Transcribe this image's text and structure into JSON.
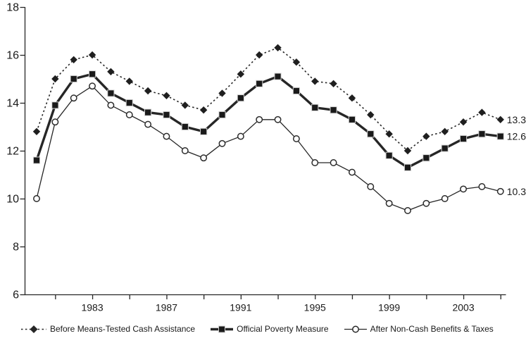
{
  "chart_data": {
    "type": "line",
    "title": "",
    "xlabel": "",
    "ylabel": "",
    "grid": false,
    "legend_position": "bottom",
    "ylim": [
      6,
      18
    ],
    "y_ticks": [
      6,
      8,
      10,
      12,
      14,
      16,
      18
    ],
    "x_minor_ticks": [
      1981,
      1983,
      1985,
      1987,
      1989,
      1991,
      1993,
      1995,
      1997,
      1999,
      2001,
      2003,
      2005
    ],
    "x_tick_labels": [
      1983,
      1987,
      1991,
      1995,
      1999,
      2003
    ],
    "x": [
      1980,
      1981,
      1982,
      1983,
      1984,
      1985,
      1986,
      1987,
      1988,
      1989,
      1990,
      1991,
      1992,
      1993,
      1994,
      1995,
      1996,
      1997,
      1998,
      1999,
      2000,
      2001,
      2002,
      2003,
      2004,
      2005
    ],
    "series": [
      {
        "name": "Before Means-Tested Cash Assistance",
        "marker": "diamond-filled",
        "line": "dotted",
        "end_label": "13.3",
        "values": [
          12.8,
          15.0,
          15.8,
          16.0,
          15.3,
          14.9,
          14.5,
          14.3,
          13.9,
          13.7,
          14.4,
          15.2,
          16.0,
          16.3,
          15.7,
          14.9,
          14.8,
          14.2,
          13.5,
          12.7,
          12.0,
          12.6,
          12.8,
          13.2,
          13.6,
          13.3
        ]
      },
      {
        "name": "Official Poverty Measure",
        "marker": "square-filled",
        "line": "solid-thick",
        "end_label": "12.6",
        "values": [
          11.6,
          13.9,
          15.0,
          15.2,
          14.4,
          14.0,
          13.6,
          13.5,
          13.0,
          12.8,
          13.5,
          14.2,
          14.8,
          15.1,
          14.5,
          13.8,
          13.7,
          13.3,
          12.7,
          11.8,
          11.3,
          11.7,
          12.1,
          12.5,
          12.7,
          12.6
        ]
      },
      {
        "name": "After Non-Cash Benefits & Taxes",
        "marker": "circle-open",
        "line": "solid-thin",
        "end_label": "10.3",
        "values": [
          10.0,
          13.2,
          14.2,
          14.7,
          13.9,
          13.5,
          13.1,
          12.6,
          12.0,
          11.7,
          12.3,
          12.6,
          13.3,
          13.3,
          12.5,
          11.5,
          11.5,
          11.1,
          10.5,
          9.8,
          9.5,
          9.8,
          10.0,
          10.4,
          10.5,
          10.3
        ]
      }
    ],
    "colors": {
      "line": "#262626",
      "background": "#ffffff"
    }
  }
}
